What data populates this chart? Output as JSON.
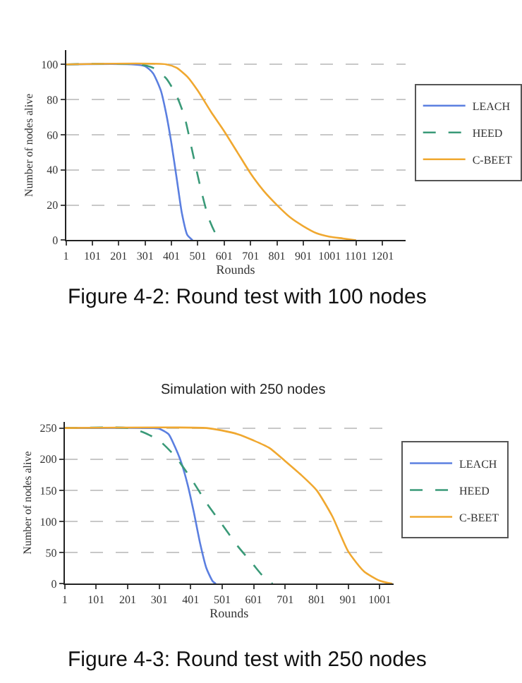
{
  "chart_data": [
    {
      "type": "line",
      "xlabel": "Rounds",
      "ylabel": "Number of nodes alive",
      "xlim": [
        1,
        1288
      ],
      "xticks": [
        1,
        101,
        201,
        301,
        401,
        501,
        601,
        701,
        801,
        901,
        1001,
        1101,
        1201
      ],
      "ylim": [
        0,
        108
      ],
      "yticks": [
        0,
        20,
        40,
        60,
        80,
        100
      ],
      "grid": "y",
      "legend": "right",
      "annotations": [
        "Figure 4-2: Round test with 100 nodes"
      ],
      "series": [
        {
          "name": "LEACH",
          "color": "#5b7fe0",
          "line_style": "solid",
          "x": [
            1,
            251,
            301,
            331,
            361,
            381,
            401,
            421,
            441,
            461,
            481
          ],
          "values": [
            100,
            100,
            99,
            95,
            85,
            72,
            55,
            35,
            15,
            3,
            0
          ]
        },
        {
          "name": "HEED",
          "color": "#3a9a78",
          "line_style": "dashed",
          "x": [
            1,
            281,
            331,
            381,
            421,
            451,
            481,
            511,
            541,
            571,
            591
          ],
          "values": [
            100,
            100,
            98,
            92,
            82,
            70,
            50,
            30,
            13,
            3,
            0
          ]
        },
        {
          "name": "C-BEET",
          "color": "#f0a830",
          "line_style": "solid",
          "x": [
            1,
            381,
            421,
            461,
            501,
            551,
            601,
            651,
            701,
            751,
            801,
            851,
            901,
            951,
            1001,
            1051,
            1101
          ],
          "values": [
            100,
            100,
            98,
            93,
            85,
            73,
            62,
            50,
            38,
            28,
            20,
            13,
            8,
            4,
            2,
            1,
            0
          ]
        }
      ]
    },
    {
      "type": "line",
      "title": "Simulation with 250 nodes",
      "xlabel": "Rounds",
      "ylabel": "Number of nodes alive",
      "xlim": [
        1,
        1045
      ],
      "xticks": [
        1,
        101,
        201,
        301,
        401,
        501,
        601,
        701,
        801,
        901,
        1001
      ],
      "ylim": [
        0,
        260
      ],
      "yticks": [
        0,
        50,
        100,
        150,
        200,
        250
      ],
      "grid": "y",
      "legend": "right",
      "annotations": [
        "Figure 4-3: Round test with 250 nodes"
      ],
      "series": [
        {
          "name": "LEACH",
          "color": "#5b7fe0",
          "line_style": "solid",
          "x": [
            1,
            281,
            301,
            331,
            351,
            371,
            391,
            411,
            431,
            451,
            471,
            481
          ],
          "values": [
            250,
            250,
            249,
            240,
            220,
            195,
            160,
            115,
            65,
            25,
            4,
            0
          ]
        },
        {
          "name": "HEED",
          "color": "#3a9a78",
          "line_style": "dashed",
          "x": [
            1,
            201,
            251,
            301,
            351,
            401,
            451,
            501,
            551,
            601,
            631,
            661
          ],
          "values": [
            250,
            250,
            243,
            230,
            205,
            170,
            130,
            95,
            60,
            30,
            12,
            0
          ]
        },
        {
          "name": "C-BEET",
          "color": "#f0a830",
          "line_style": "solid",
          "x": [
            1,
            451,
            501,
            551,
            601,
            651,
            701,
            751,
            801,
            851,
            901,
            951,
            1001,
            1041
          ],
          "values": [
            250,
            250,
            246,
            240,
            230,
            218,
            197,
            175,
            150,
            108,
            52,
            20,
            5,
            0
          ]
        }
      ]
    }
  ]
}
